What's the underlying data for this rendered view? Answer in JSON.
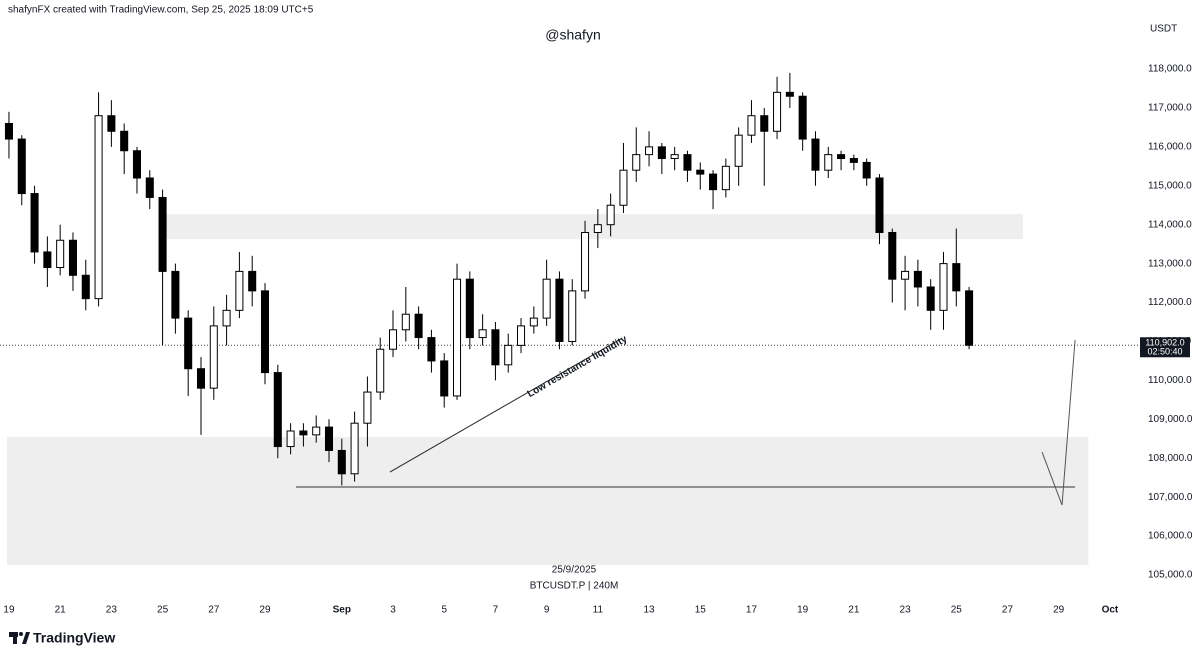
{
  "header": "shafynFX created with TradingView.com, Sep 25, 2025 18:09 UTC+5",
  "brand": "TradingView",
  "chart_data": {
    "type": "candlestick",
    "title": "@shafyn",
    "y_label": "USDT",
    "date_label": "25/9/2025",
    "symbol": "BTCUSDT.P | 240M",
    "x": [
      0,
      0.5,
      1,
      1.5,
      2,
      2.5,
      3,
      3.5,
      4,
      4.5,
      5,
      5.5,
      6,
      6.5,
      7,
      7.5,
      8,
      8.5,
      9,
      9.5,
      10,
      10.5,
      11,
      11.5,
      12,
      12.5,
      13,
      13.5,
      14,
      14.5,
      15,
      15.5,
      16,
      16.5,
      17,
      17.5,
      18,
      18.5,
      19,
      19.5,
      20,
      20.5,
      21,
      21.5,
      22,
      22.5,
      23,
      23.5,
      24,
      24.5,
      25,
      25.5,
      26,
      26.5,
      27,
      27.5,
      28,
      28.5,
      29,
      29.5,
      30,
      30.5,
      31,
      31.5,
      32,
      32.5,
      33,
      33.5,
      34,
      34.5,
      35,
      35.5,
      36,
      36.5,
      37,
      37.5
    ],
    "open": [
      116600,
      116200,
      114800,
      113300,
      112900,
      113600,
      112700,
      112100,
      116800,
      116400,
      115900,
      115200,
      114700,
      112800,
      111600,
      110300,
      109800,
      111400,
      111800,
      112800,
      112300,
      110200,
      108300,
      108700,
      108600,
      108800,
      108200,
      107600,
      108900,
      109700,
      110800,
      111300,
      111700,
      111100,
      110500,
      109600,
      112600,
      111100,
      111300,
      110400,
      110900,
      111400,
      111600,
      112600,
      111000,
      112300,
      113800,
      114000,
      114500,
      115400,
      115800,
      116000,
      115700,
      115800,
      115400,
      115300,
      114900,
      115500,
      116300,
      116800,
      116400,
      117400,
      117300,
      116200,
      115400,
      115800,
      115700,
      115600,
      115200,
      113800,
      112600,
      112800,
      112400,
      111800,
      113000,
      112300
    ],
    "high": [
      116900,
      116300,
      115000,
      113700,
      114000,
      113800,
      113100,
      117400,
      117200,
      116600,
      116000,
      115400,
      114900,
      113000,
      111800,
      110600,
      111900,
      112200,
      113300,
      113200,
      112500,
      110400,
      108900,
      108900,
      109100,
      109000,
      108500,
      109200,
      110100,
      111100,
      111800,
      112400,
      111900,
      111300,
      110700,
      113000,
      112800,
      111700,
      111500,
      111200,
      111600,
      111900,
      113100,
      112800,
      112600,
      114100,
      114400,
      114800,
      116100,
      116500,
      116400,
      116100,
      116000,
      115900,
      115600,
      115400,
      115700,
      116500,
      117200,
      117000,
      117800,
      117900,
      117400,
      116400,
      116000,
      115900,
      115800,
      115700,
      115300,
      113900,
      113200,
      113100,
      112600,
      113300,
      113900,
      112400
    ],
    "low": [
      115700,
      114500,
      113000,
      112400,
      112700,
      112300,
      111800,
      111900,
      116000,
      115300,
      114800,
      114400,
      110900,
      111200,
      109600,
      108600,
      109500,
      110900,
      111600,
      111900,
      109900,
      108000,
      108100,
      108300,
      108400,
      107900,
      107300,
      107400,
      108300,
      109500,
      110600,
      111000,
      110800,
      110200,
      109300,
      109500,
      110800,
      110900,
      110000,
      110200,
      110700,
      111200,
      111400,
      110800,
      110900,
      112100,
      113400,
      113700,
      114300,
      115100,
      115500,
      115300,
      115400,
      115100,
      114900,
      114400,
      114700,
      115000,
      116100,
      115000,
      116200,
      117000,
      115900,
      115000,
      115200,
      115400,
      115400,
      115000,
      113500,
      112000,
      111800,
      111900,
      111300,
      111300,
      111900,
      110800
    ],
    "close": [
      116200,
      114800,
      113300,
      112900,
      113600,
      112700,
      112100,
      116800,
      116400,
      115900,
      115200,
      114700,
      112800,
      111600,
      110300,
      109800,
      111400,
      111800,
      112800,
      112300,
      110200,
      108300,
      108700,
      108600,
      108800,
      108200,
      107600,
      108900,
      109700,
      110800,
      111300,
      111700,
      111100,
      110500,
      109600,
      112600,
      111100,
      111300,
      110400,
      110900,
      111400,
      111600,
      112600,
      111000,
      112300,
      113800,
      114000,
      114500,
      115400,
      115800,
      116000,
      115700,
      115800,
      115400,
      115300,
      114900,
      115500,
      116300,
      116800,
      116400,
      117400,
      117300,
      116200,
      115400,
      115800,
      115700,
      115600,
      115200,
      113800,
      112600,
      112800,
      112400,
      111800,
      113000,
      112300,
      110902
    ],
    "up_color": "#ffffff",
    "down_color": "#000000",
    "ylim": [
      104409,
      119259
    ],
    "yticks": [
      {
        "value": 105000,
        "label": "105,000.0"
      },
      {
        "value": 106000,
        "label": "106,000.0"
      },
      {
        "value": 107000,
        "label": "107,000.0"
      },
      {
        "value": 108000,
        "label": "108,000.0"
      },
      {
        "value": 109000,
        "label": "109,000.0"
      },
      {
        "value": 110000,
        "label": "110,000.0"
      },
      {
        "value": 111000,
        "label": "111,000.0"
      },
      {
        "value": 112000,
        "label": "112,000.0"
      },
      {
        "value": 113000,
        "label": "113,000.0"
      },
      {
        "value": 114000,
        "label": "114,000.0"
      },
      {
        "value": 115000,
        "label": "115,000.0"
      },
      {
        "value": 116000,
        "label": "116,000.0"
      },
      {
        "value": 117000,
        "label": "117,000.0"
      },
      {
        "value": 118000,
        "label": "118,000.0"
      }
    ],
    "xlim": [
      -0.35,
      43.98
    ],
    "xticks": [
      {
        "value": 0,
        "label": "19"
      },
      {
        "value": 2,
        "label": "21"
      },
      {
        "value": 4,
        "label": "23"
      },
      {
        "value": 6,
        "label": "25"
      },
      {
        "value": 8,
        "label": "27"
      },
      {
        "value": 10,
        "label": "29"
      },
      {
        "value": 13,
        "label": "Sep"
      },
      {
        "value": 15,
        "label": "3"
      },
      {
        "value": 17,
        "label": "5"
      },
      {
        "value": 19,
        "label": "7"
      },
      {
        "value": 21,
        "label": "9"
      },
      {
        "value": 23,
        "label": "11"
      },
      {
        "value": 25,
        "label": "13"
      },
      {
        "value": 27,
        "label": "15"
      },
      {
        "value": 29,
        "label": "17"
      },
      {
        "value": 31,
        "label": "19"
      },
      {
        "value": 33,
        "label": "21"
      },
      {
        "value": 35,
        "label": "23"
      },
      {
        "value": 37,
        "label": "25"
      },
      {
        "value": 39,
        "label": "27"
      },
      {
        "value": 41,
        "label": "29"
      },
      {
        "value": 43,
        "label": "Oct"
      }
    ],
    "last_price": {
      "value": 110902,
      "label": "110,902.0"
    },
    "countdown": "02:50:40",
    "zones": [
      {
        "x0": 6.1,
        "x1": 39.6,
        "top": 114270,
        "bottom": 113630
      },
      {
        "x0": -0.08,
        "x1": 42.16,
        "top": 108545,
        "bottom": 105255
      }
    ],
    "level": {
      "x0": 11.21,
      "x1": 41.64,
      "value": 107260
    },
    "trend_line": {
      "x": [
        14.88,
        23.95
      ],
      "y": [
        107645,
        111088
      ]
    },
    "projection": {
      "x": [
        40.35,
        41.13,
        41.64
      ],
      "y": [
        108159,
        106797,
        111037
      ]
    },
    "annotation": {
      "text": "Low resistance liquidity",
      "x": 22.2,
      "y": 110350
    }
  }
}
